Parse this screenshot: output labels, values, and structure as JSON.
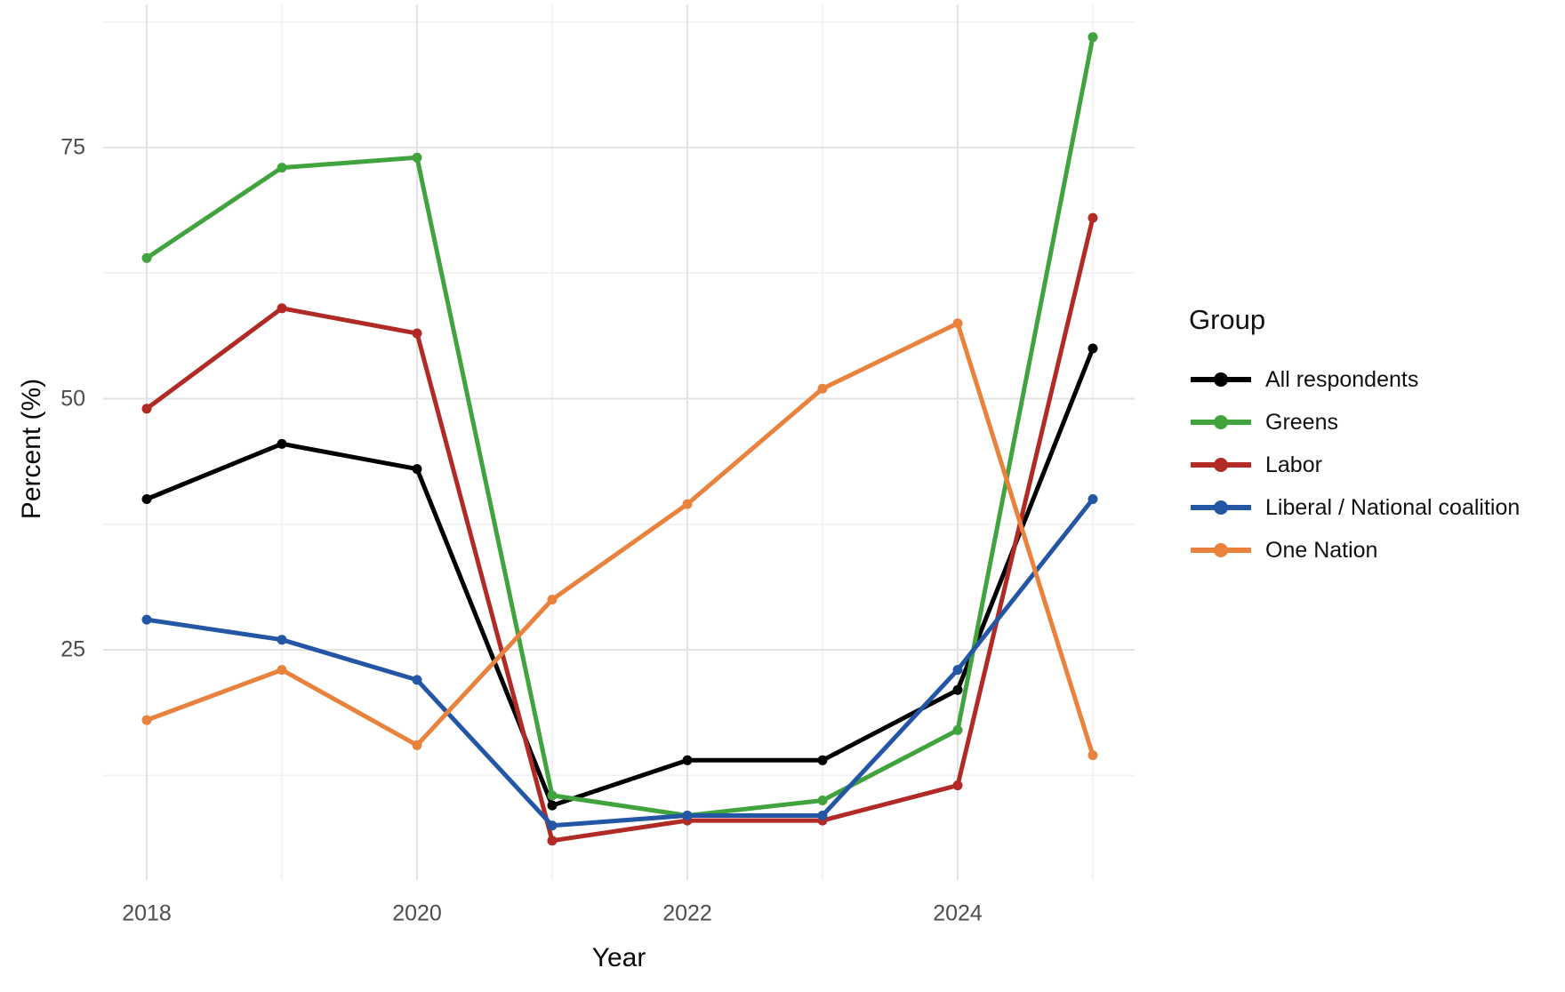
{
  "chart_data": {
    "type": "line",
    "title": "",
    "xlabel": "Year",
    "ylabel": "Percent (%)",
    "x": [
      2018,
      2019,
      2020,
      2021,
      2022,
      2023,
      2024,
      2025
    ],
    "x_major_ticks": [
      2018,
      2020,
      2022,
      2024
    ],
    "x_minor_ticks": [
      2019,
      2021,
      2023,
      2025
    ],
    "x_tick_labels": [
      "2018",
      "2020",
      "2022",
      "2024"
    ],
    "y_major_ticks": [
      25,
      50,
      75
    ],
    "y_minor_ticks": [
      12.5,
      37.5,
      62.5,
      87.5
    ],
    "y_tick_labels": [
      "25",
      "50",
      "75"
    ],
    "ylim": [
      3,
      90
    ],
    "grid": "major+minor",
    "legend_title": "Group",
    "legend_position": "right",
    "series": [
      {
        "name": "All respondents",
        "color": "#000000",
        "values": [
          40,
          45.5,
          43,
          9.5,
          14,
          14,
          21,
          55
        ]
      },
      {
        "name": "Greens",
        "color": "#41A33D",
        "values": [
          64,
          73,
          74,
          10.5,
          8.5,
          10,
          17,
          86
        ]
      },
      {
        "name": "Labor",
        "color": "#B22A26",
        "values": [
          49,
          59,
          56.5,
          6,
          8,
          8,
          11.5,
          68
        ]
      },
      {
        "name": "Liberal / National coalition",
        "color": "#2356A5",
        "values": [
          28,
          26,
          22,
          7.5,
          8.5,
          8.5,
          23,
          40
        ]
      },
      {
        "name": "One Nation",
        "color": "#E8823D",
        "values": [
          18,
          23,
          15.5,
          30,
          39.5,
          51,
          57.5,
          14.5
        ]
      }
    ],
    "grid_major_color": "#E3E3E3",
    "grid_minor_color": "#F0F0F0",
    "tick_label_color": "#4d4d4d"
  }
}
